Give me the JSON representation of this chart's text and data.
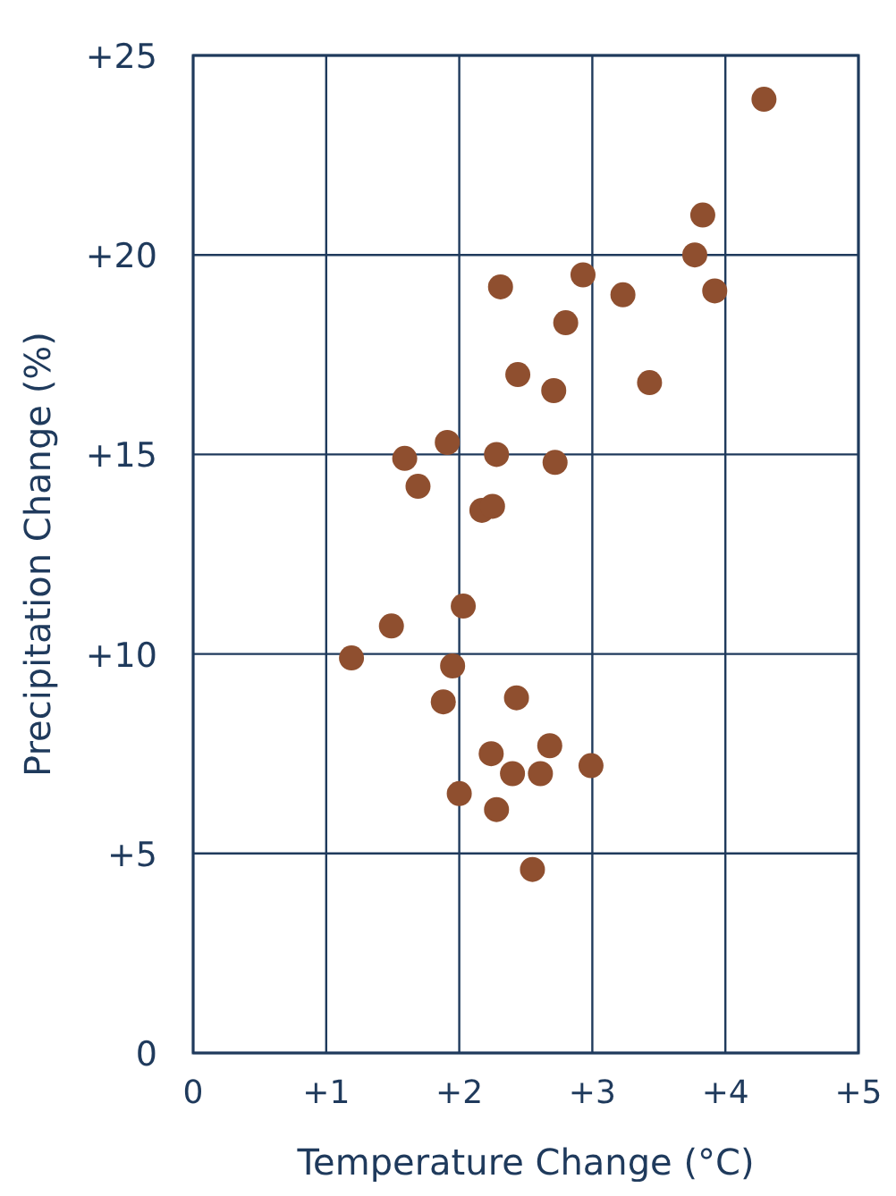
{
  "chart_data": {
    "type": "scatter",
    "xlabel": "Temperature Change (°C)",
    "ylabel": "Precipitation Change (%)",
    "x": [
      4.29,
      3.83,
      3.77,
      3.92,
      2.31,
      2.93,
      3.23,
      2.8,
      2.44,
      2.71,
      3.43,
      1.91,
      2.28,
      2.72,
      1.59,
      1.69,
      2.17,
      2.25,
      2.03,
      1.49,
      1.19,
      1.95,
      1.88,
      2.43,
      2.24,
      2.68,
      2.4,
      2.61,
      2.99,
      2.0,
      2.28,
      2.55
    ],
    "values": [
      23.9,
      21.0,
      20.0,
      19.1,
      19.2,
      19.5,
      19.0,
      18.3,
      17.0,
      16.6,
      16.8,
      15.3,
      15.0,
      14.8,
      14.9,
      14.2,
      13.6,
      13.7,
      11.2,
      10.7,
      9.9,
      9.7,
      8.8,
      8.9,
      7.5,
      7.7,
      7.0,
      7.0,
      7.2,
      6.5,
      6.1,
      4.6
    ],
    "color": "#8f4f2f",
    "marker": "circle",
    "grid": true,
    "xlim": [
      0,
      5
    ],
    "xticks": [
      0,
      {
        "value": 1,
        "label": "+1"
      },
      {
        "value": 2,
        "label": "+2"
      },
      {
        "value": 3,
        "label": "+3"
      },
      {
        "value": 4,
        "label": "+4"
      },
      {
        "value": 5,
        "label": "+5"
      }
    ],
    "ylim": [
      0,
      25
    ],
    "yticks": [
      0,
      {
        "value": 5,
        "label": "+5"
      },
      {
        "value": 10,
        "label": "+10"
      },
      {
        "value": 15,
        "label": "+15"
      },
      {
        "value": 20,
        "label": "+20"
      },
      {
        "value": 25,
        "label": "+25"
      }
    ]
  }
}
